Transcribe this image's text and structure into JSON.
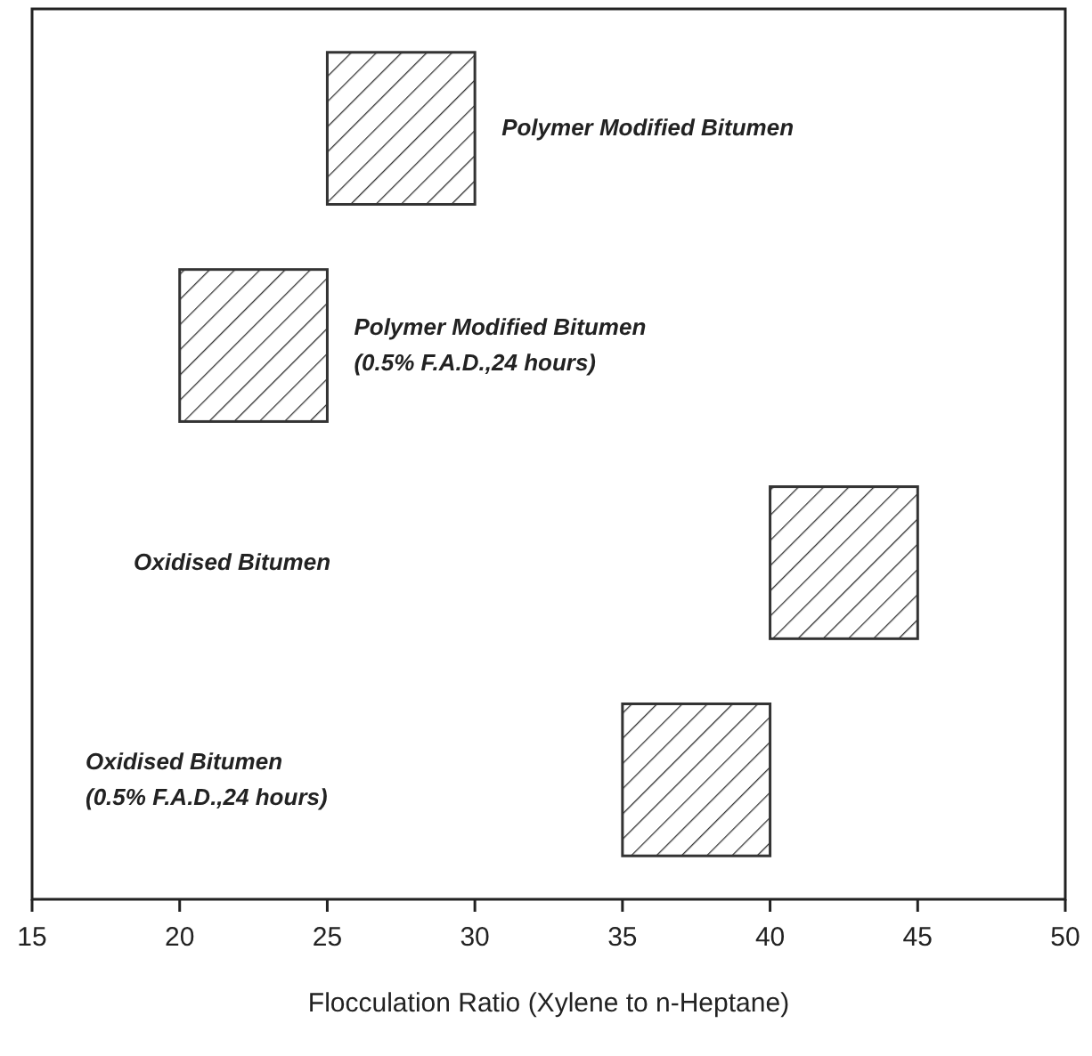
{
  "chart_data": {
    "type": "bar",
    "orientation": "horizontal",
    "xlabel": "Flocculation Ratio (Xylene to n-Heptane)",
    "categories": [
      "Polymer Modified Bitumen",
      "Polymer Modified Bitumen\n(0.5% F.A.D.,24 hours)",
      "Oxidised Bitumen",
      "Oxidised Bitumen\n(0.5% F.A.D.,24 hours)"
    ],
    "base": [
      25,
      20,
      40,
      35
    ],
    "values": [
      5,
      5,
      5,
      5
    ],
    "color": "#333333",
    "xlim": [
      15,
      50
    ],
    "xticks": [
      15,
      20,
      25,
      30,
      35,
      40,
      45,
      50
    ]
  }
}
